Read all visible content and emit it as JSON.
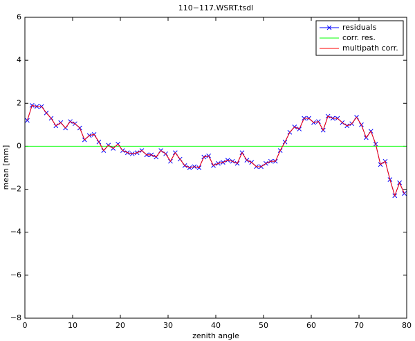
{
  "chart_data": {
    "type": "line",
    "title": "110−117.WSRT.tsdl",
    "x_label": "zenith angle",
    "y_label": "mean  [mm]",
    "x": [
      0.5,
      1.5,
      2.5,
      3.5,
      4.5,
      5.5,
      6.5,
      7.5,
      8.5,
      9.5,
      10.5,
      11.5,
      12.5,
      13.5,
      14.5,
      15.5,
      16.5,
      17.5,
      18.5,
      19.5,
      20.5,
      21.5,
      22.5,
      23.5,
      24.5,
      25.5,
      26.5,
      27.5,
      28.5,
      29.5,
      30.5,
      31.5,
      32.5,
      33.5,
      34.5,
      35.5,
      36.5,
      37.5,
      38.5,
      39.5,
      40.5,
      41.5,
      42.5,
      43.5,
      44.5,
      45.5,
      46.5,
      47.5,
      48.5,
      49.5,
      50.5,
      51.5,
      52.5,
      53.5,
      54.5,
      55.5,
      56.5,
      57.5,
      58.5,
      59.5,
      60.5,
      61.5,
      62.5,
      63.5,
      64.5,
      65.5,
      66.5,
      67.5,
      68.5,
      69.5,
      70.5,
      71.5,
      72.5,
      73.5,
      74.5,
      75.5,
      76.5,
      77.5,
      78.5,
      79.5
    ],
    "series": [
      {
        "name": "residuals",
        "color": "#0000ff",
        "marker": "x",
        "values": [
          1.2,
          1.9,
          1.85,
          1.85,
          1.55,
          1.3,
          0.95,
          1.1,
          0.85,
          1.15,
          1.05,
          0.85,
          0.3,
          0.5,
          0.55,
          0.2,
          -0.2,
          0.05,
          -0.1,
          0.1,
          -0.2,
          -0.3,
          -0.35,
          -0.3,
          -0.2,
          -0.4,
          -0.4,
          -0.5,
          -0.2,
          -0.35,
          -0.7,
          -0.3,
          -0.6,
          -0.9,
          -1.0,
          -0.95,
          -1.0,
          -0.5,
          -0.45,
          -0.9,
          -0.8,
          -0.75,
          -0.65,
          -0.7,
          -0.8,
          -0.3,
          -0.65,
          -0.75,
          -0.95,
          -0.95,
          -0.8,
          -0.7,
          -0.7,
          -0.2,
          0.2,
          0.65,
          0.9,
          0.8,
          1.3,
          1.3,
          1.1,
          1.15,
          0.75,
          1.4,
          1.3,
          1.3,
          1.1,
          0.95,
          1.05,
          1.35,
          1.0,
          0.4,
          0.7,
          0.1,
          -0.85,
          -0.7,
          -1.55,
          -2.3,
          -1.7,
          -2.2
        ]
      },
      {
        "name": "corr. res.",
        "color": "#00ff00",
        "x": [
          0,
          80
        ],
        "values": [
          0,
          0
        ]
      },
      {
        "name": "multipath corr.",
        "color": "#ff0000",
        "values": [
          1.2,
          1.9,
          1.85,
          1.85,
          1.55,
          1.3,
          0.95,
          1.1,
          0.85,
          1.15,
          1.05,
          0.85,
          0.3,
          0.5,
          0.55,
          0.2,
          -0.2,
          0.05,
          -0.1,
          0.1,
          -0.2,
          -0.3,
          -0.35,
          -0.3,
          -0.2,
          -0.4,
          -0.4,
          -0.5,
          -0.2,
          -0.35,
          -0.7,
          -0.3,
          -0.6,
          -0.9,
          -1.0,
          -0.95,
          -1.0,
          -0.5,
          -0.45,
          -0.9,
          -0.8,
          -0.75,
          -0.65,
          -0.7,
          -0.8,
          -0.3,
          -0.65,
          -0.75,
          -0.95,
          -0.95,
          -0.8,
          -0.7,
          -0.7,
          -0.2,
          0.2,
          0.65,
          0.9,
          0.8,
          1.3,
          1.3,
          1.1,
          1.15,
          0.75,
          1.4,
          1.3,
          1.3,
          1.1,
          0.95,
          1.05,
          1.35,
          1.0,
          0.4,
          0.7,
          0.1,
          -0.85,
          -0.7,
          -1.55,
          -2.3,
          -1.7,
          -2.2
        ]
      }
    ],
    "xlim": [
      0,
      80
    ],
    "xticks": [
      0,
      10,
      20,
      30,
      40,
      50,
      60,
      70,
      80
    ],
    "ylim": [
      -8,
      6
    ],
    "yticks": [
      {
        "value": -8,
        "label": "−8"
      },
      {
        "value": -6,
        "label": "−6"
      },
      {
        "value": -4,
        "label": "−4"
      },
      {
        "value": -2,
        "label": "−2"
      },
      0,
      2,
      4,
      6
    ],
    "grid": false,
    "legend": "upper right"
  }
}
